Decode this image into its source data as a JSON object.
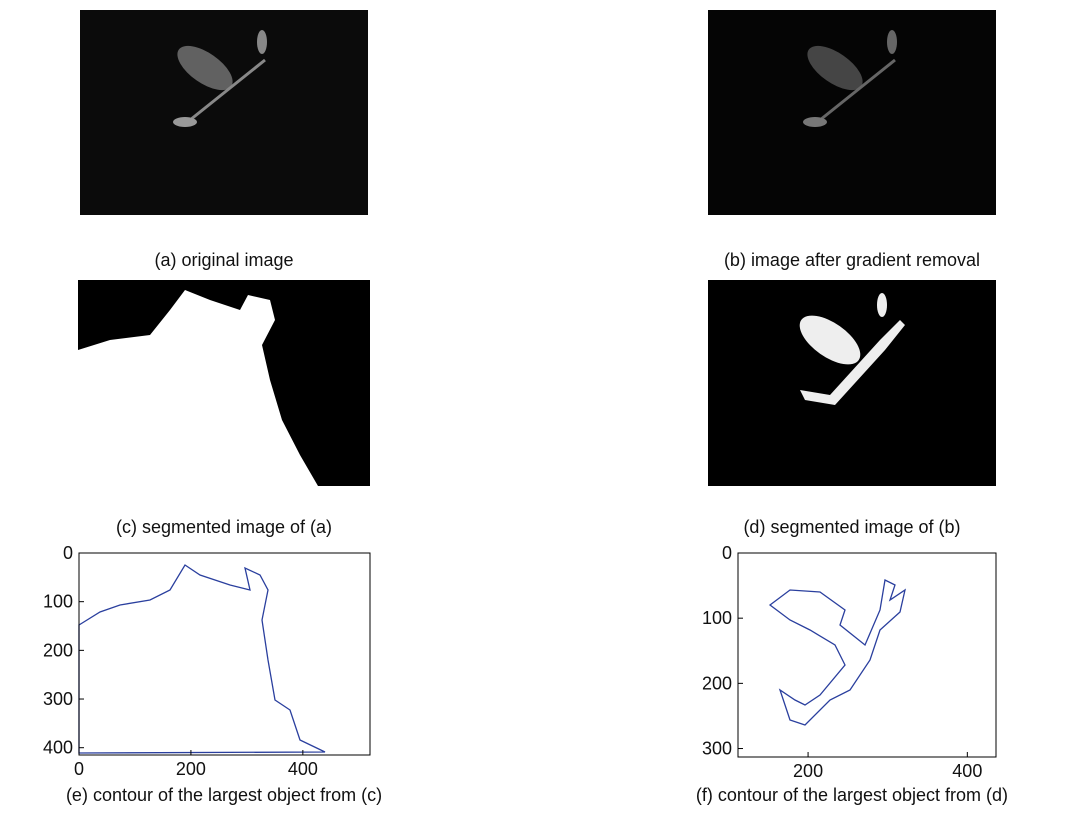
{
  "captions": [
    "(a) original image",
    "(b) image after gradient removal",
    "(c) segmented image of (a)",
    "(d) segmented image of (b)",
    "(e) contour of the largest object from (c)",
    "(f) contour of the largest object from (d)"
  ],
  "plots": [
    {
      "xlim": [
        0,
        520
      ],
      "ylim": [
        0,
        415
      ],
      "xticks": [
        0,
        200,
        400
      ],
      "yticks": [
        0,
        100,
        200,
        300,
        400
      ],
      "color": "#2a3f9e"
    },
    {
      "xlim": [
        112,
        436
      ],
      "ylim": [
        0,
        313
      ],
      "xticks": [
        200,
        400
      ],
      "yticks": [
        0,
        100,
        200,
        300
      ],
      "color": "#2a3f9e"
    }
  ]
}
